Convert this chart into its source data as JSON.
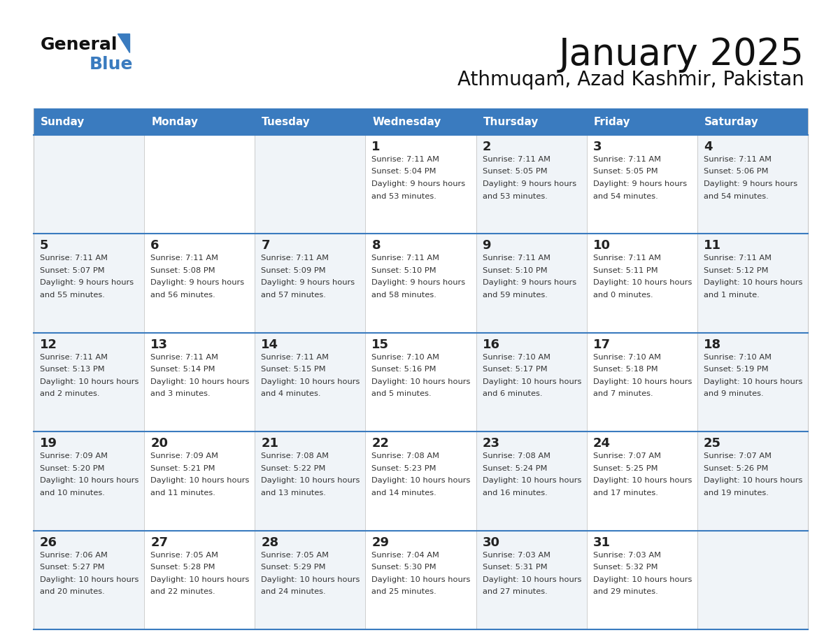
{
  "title": "January 2025",
  "subtitle": "Athmuqam, Azad Kashmir, Pakistan",
  "days_of_week": [
    "Sunday",
    "Monday",
    "Tuesday",
    "Wednesday",
    "Thursday",
    "Friday",
    "Saturday"
  ],
  "header_bg": "#3a7bbf",
  "header_text": "#ffffff",
  "cell_bg_odd": "#f0f4f8",
  "cell_bg_even": "#ffffff",
  "separator_color": "#3a7bbf",
  "day_num_color": "#222222",
  "text_color": "#333333",
  "calendar_data": [
    [
      null,
      null,
      null,
      {
        "day": 1,
        "sunrise": "7:11 AM",
        "sunset": "5:04 PM",
        "daylight": "9 hours and 53 minutes"
      },
      {
        "day": 2,
        "sunrise": "7:11 AM",
        "sunset": "5:05 PM",
        "daylight": "9 hours and 53 minutes"
      },
      {
        "day": 3,
        "sunrise": "7:11 AM",
        "sunset": "5:05 PM",
        "daylight": "9 hours and 54 minutes"
      },
      {
        "day": 4,
        "sunrise": "7:11 AM",
        "sunset": "5:06 PM",
        "daylight": "9 hours and 54 minutes"
      }
    ],
    [
      {
        "day": 5,
        "sunrise": "7:11 AM",
        "sunset": "5:07 PM",
        "daylight": "9 hours and 55 minutes"
      },
      {
        "day": 6,
        "sunrise": "7:11 AM",
        "sunset": "5:08 PM",
        "daylight": "9 hours and 56 minutes"
      },
      {
        "day": 7,
        "sunrise": "7:11 AM",
        "sunset": "5:09 PM",
        "daylight": "9 hours and 57 minutes"
      },
      {
        "day": 8,
        "sunrise": "7:11 AM",
        "sunset": "5:10 PM",
        "daylight": "9 hours and 58 minutes"
      },
      {
        "day": 9,
        "sunrise": "7:11 AM",
        "sunset": "5:10 PM",
        "daylight": "9 hours and 59 minutes"
      },
      {
        "day": 10,
        "sunrise": "7:11 AM",
        "sunset": "5:11 PM",
        "daylight": "10 hours and 0 minutes"
      },
      {
        "day": 11,
        "sunrise": "7:11 AM",
        "sunset": "5:12 PM",
        "daylight": "10 hours and 1 minute"
      }
    ],
    [
      {
        "day": 12,
        "sunrise": "7:11 AM",
        "sunset": "5:13 PM",
        "daylight": "10 hours and 2 minutes"
      },
      {
        "day": 13,
        "sunrise": "7:11 AM",
        "sunset": "5:14 PM",
        "daylight": "10 hours and 3 minutes"
      },
      {
        "day": 14,
        "sunrise": "7:11 AM",
        "sunset": "5:15 PM",
        "daylight": "10 hours and 4 minutes"
      },
      {
        "day": 15,
        "sunrise": "7:10 AM",
        "sunset": "5:16 PM",
        "daylight": "10 hours and 5 minutes"
      },
      {
        "day": 16,
        "sunrise": "7:10 AM",
        "sunset": "5:17 PM",
        "daylight": "10 hours and 6 minutes"
      },
      {
        "day": 17,
        "sunrise": "7:10 AM",
        "sunset": "5:18 PM",
        "daylight": "10 hours and 7 minutes"
      },
      {
        "day": 18,
        "sunrise": "7:10 AM",
        "sunset": "5:19 PM",
        "daylight": "10 hours and 9 minutes"
      }
    ],
    [
      {
        "day": 19,
        "sunrise": "7:09 AM",
        "sunset": "5:20 PM",
        "daylight": "10 hours and 10 minutes"
      },
      {
        "day": 20,
        "sunrise": "7:09 AM",
        "sunset": "5:21 PM",
        "daylight": "10 hours and 11 minutes"
      },
      {
        "day": 21,
        "sunrise": "7:08 AM",
        "sunset": "5:22 PM",
        "daylight": "10 hours and 13 minutes"
      },
      {
        "day": 22,
        "sunrise": "7:08 AM",
        "sunset": "5:23 PM",
        "daylight": "10 hours and 14 minutes"
      },
      {
        "day": 23,
        "sunrise": "7:08 AM",
        "sunset": "5:24 PM",
        "daylight": "10 hours and 16 minutes"
      },
      {
        "day": 24,
        "sunrise": "7:07 AM",
        "sunset": "5:25 PM",
        "daylight": "10 hours and 17 minutes"
      },
      {
        "day": 25,
        "sunrise": "7:07 AM",
        "sunset": "5:26 PM",
        "daylight": "10 hours and 19 minutes"
      }
    ],
    [
      {
        "day": 26,
        "sunrise": "7:06 AM",
        "sunset": "5:27 PM",
        "daylight": "10 hours and 20 minutes"
      },
      {
        "day": 27,
        "sunrise": "7:05 AM",
        "sunset": "5:28 PM",
        "daylight": "10 hours and 22 minutes"
      },
      {
        "day": 28,
        "sunrise": "7:05 AM",
        "sunset": "5:29 PM",
        "daylight": "10 hours and 24 minutes"
      },
      {
        "day": 29,
        "sunrise": "7:04 AM",
        "sunset": "5:30 PM",
        "daylight": "10 hours and 25 minutes"
      },
      {
        "day": 30,
        "sunrise": "7:03 AM",
        "sunset": "5:31 PM",
        "daylight": "10 hours and 27 minutes"
      },
      {
        "day": 31,
        "sunrise": "7:03 AM",
        "sunset": "5:32 PM",
        "daylight": "10 hours and 29 minutes"
      },
      null
    ]
  ]
}
